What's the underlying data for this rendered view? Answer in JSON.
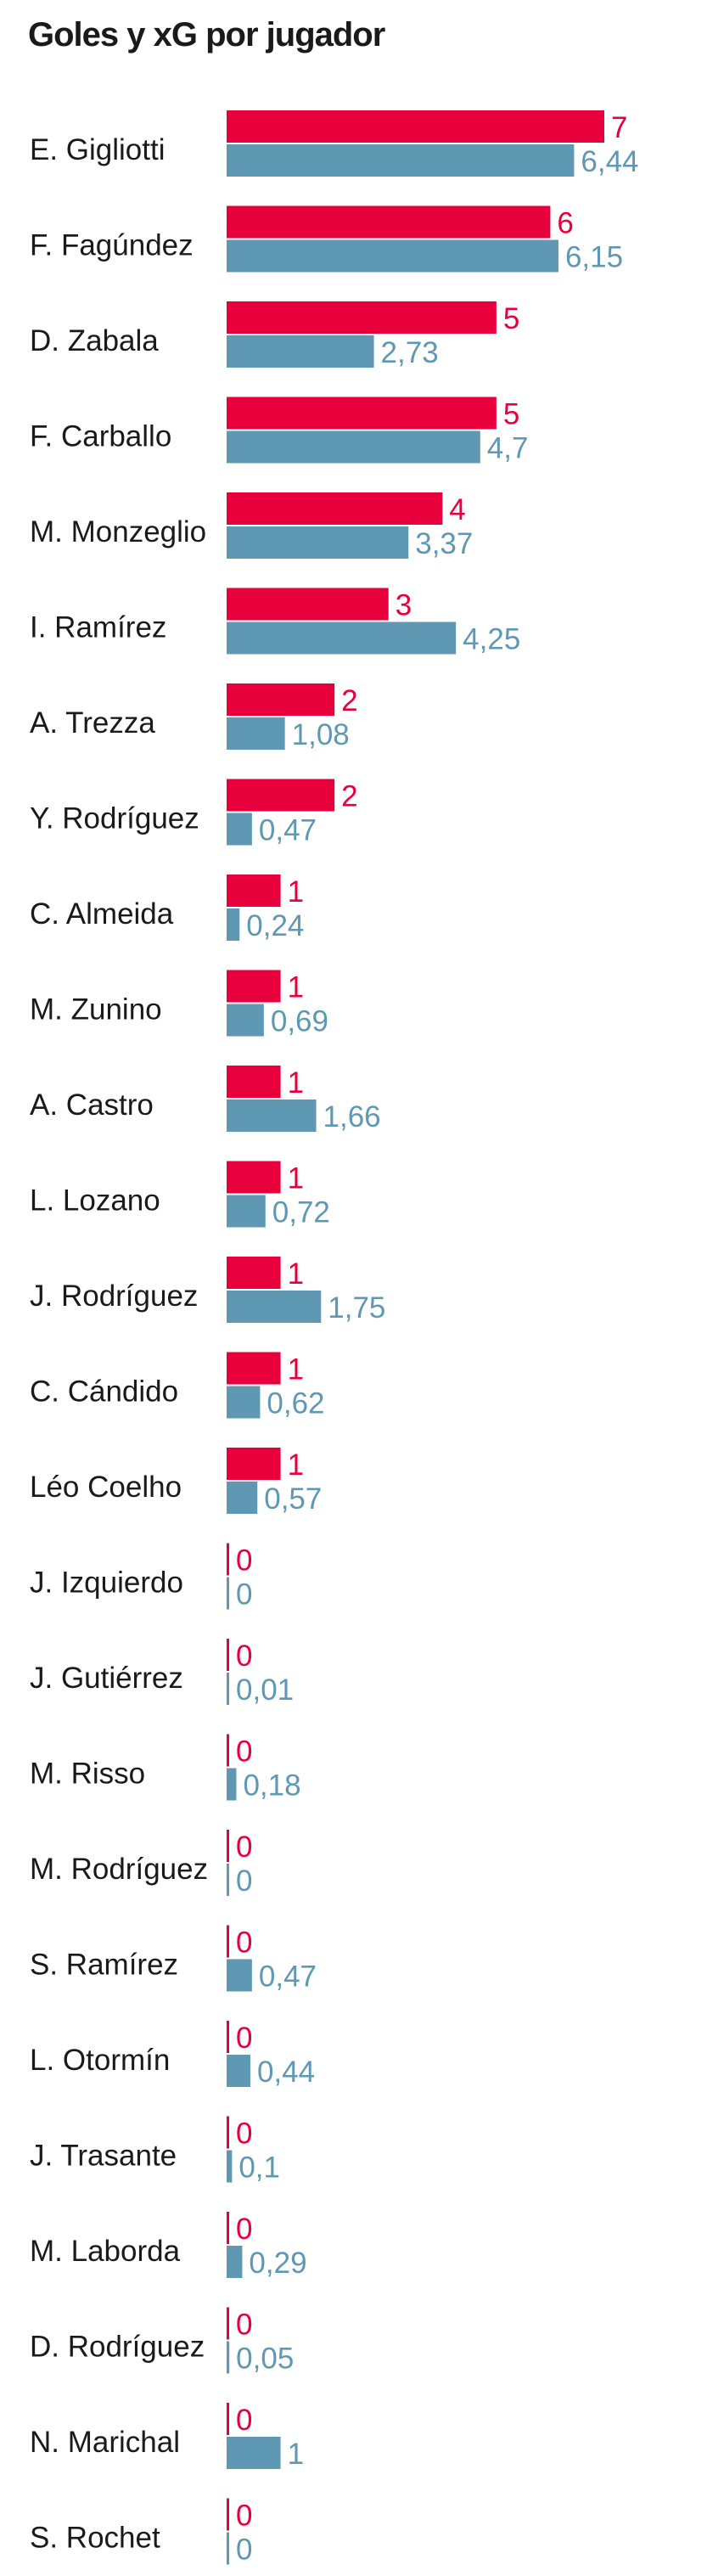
{
  "chart_data": {
    "type": "bar",
    "orientation": "horizontal",
    "title": "Goles y xG por jugador",
    "categories": [
      "E. Gigliotti",
      "F. Fagúndez",
      "D. Zabala",
      "F. Carballo",
      "M. Monzeglio",
      "I. Ramírez",
      "A. Trezza",
      "Y. Rodríguez",
      "C. Almeida",
      "M. Zunino",
      "A. Castro",
      "L. Lozano",
      "J. Rodríguez",
      "C. Cándido",
      "Léo Coelho",
      "J. Izquierdo",
      "J. Gutiérrez",
      "M. Risso",
      "M. Rodríguez",
      "S. Ramírez",
      "L. Otormín",
      "J. Trasante",
      "M. Laborda",
      "D. Rodríguez",
      "N. Marichal",
      "S. Rochet"
    ],
    "series": [
      {
        "key": "goles",
        "color": "#e8003d",
        "values": [
          7,
          6,
          5,
          5,
          4,
          3,
          2,
          2,
          1,
          1,
          1,
          1,
          1,
          1,
          1,
          0,
          0,
          0,
          0,
          0,
          0,
          0,
          0,
          0,
          0,
          0
        ],
        "labels": [
          "7",
          "6",
          "5",
          "5",
          "4",
          "3",
          "2",
          "2",
          "1",
          "1",
          "1",
          "1",
          "1",
          "1",
          "1",
          "0",
          "0",
          "0",
          "0",
          "0",
          "0",
          "0",
          "0",
          "0",
          "0",
          "0"
        ]
      },
      {
        "key": "xg",
        "color": "#5f98b3",
        "values": [
          6.44,
          6.15,
          2.73,
          4.7,
          3.37,
          4.25,
          1.08,
          0.47,
          0.24,
          0.69,
          1.66,
          0.72,
          1.75,
          0.62,
          0.57,
          0,
          0.01,
          0.18,
          0,
          0.47,
          0.44,
          0.1,
          0.29,
          0.05,
          1,
          0
        ],
        "labels": [
          "6,44",
          "6,15",
          "2,73",
          "4,7",
          "3,37",
          "4,25",
          "1,08",
          "0,47",
          "0,24",
          "0,69",
          "1,66",
          "0,72",
          "1,75",
          "0,62",
          "0,57",
          "0",
          "0,01",
          "0,18",
          "0",
          "0,47",
          "0,44",
          "0,1",
          "0,29",
          "0,05",
          "1",
          "0"
        ]
      }
    ],
    "xlim": [
      0,
      7
    ],
    "grid": false,
    "legend": "none"
  }
}
